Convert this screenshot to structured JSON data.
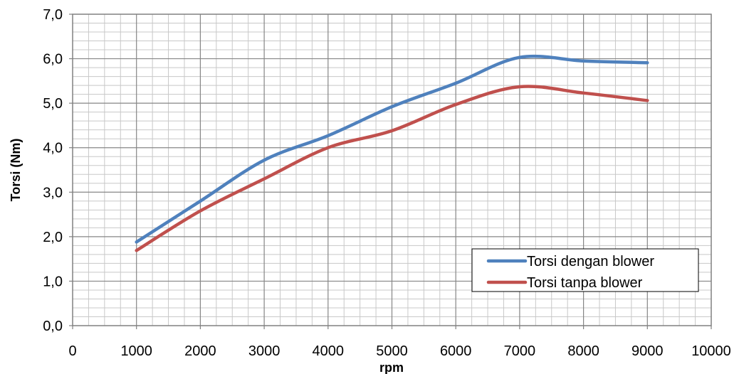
{
  "chart_data": {
    "type": "line",
    "xlabel": "rpm",
    "ylabel": "Torsi (Nm)",
    "xlim": [
      0,
      10000
    ],
    "ylim": [
      0,
      7
    ],
    "x_major_step": 1000,
    "x_minor_step": 250,
    "y_major_step": 1,
    "y_minor_step": 0.2,
    "x_tick_labels": [
      "0",
      "1000",
      "2000",
      "3000",
      "4000",
      "5000",
      "6000",
      "7000",
      "8000",
      "9000",
      "10000"
    ],
    "y_tick_labels": [
      "0,0",
      "1,0",
      "2,0",
      "3,0",
      "4,0",
      "5,0",
      "6,0",
      "7,0"
    ],
    "grid": true,
    "legend_position": "bottom-right",
    "x": [
      1000,
      2000,
      3000,
      4000,
      5000,
      6000,
      7000,
      8000,
      9000
    ],
    "series": [
      {
        "name": "Torsi dengan blower",
        "color": "#4F81BD",
        "values": [
          1.88,
          2.8,
          3.72,
          4.27,
          4.92,
          5.45,
          6.03,
          5.95,
          5.91
        ]
      },
      {
        "name": "Torsi tanpa blower",
        "color": "#C0504D",
        "values": [
          1.69,
          2.58,
          3.3,
          4.0,
          4.38,
          4.97,
          5.37,
          5.23,
          5.06
        ]
      }
    ]
  }
}
